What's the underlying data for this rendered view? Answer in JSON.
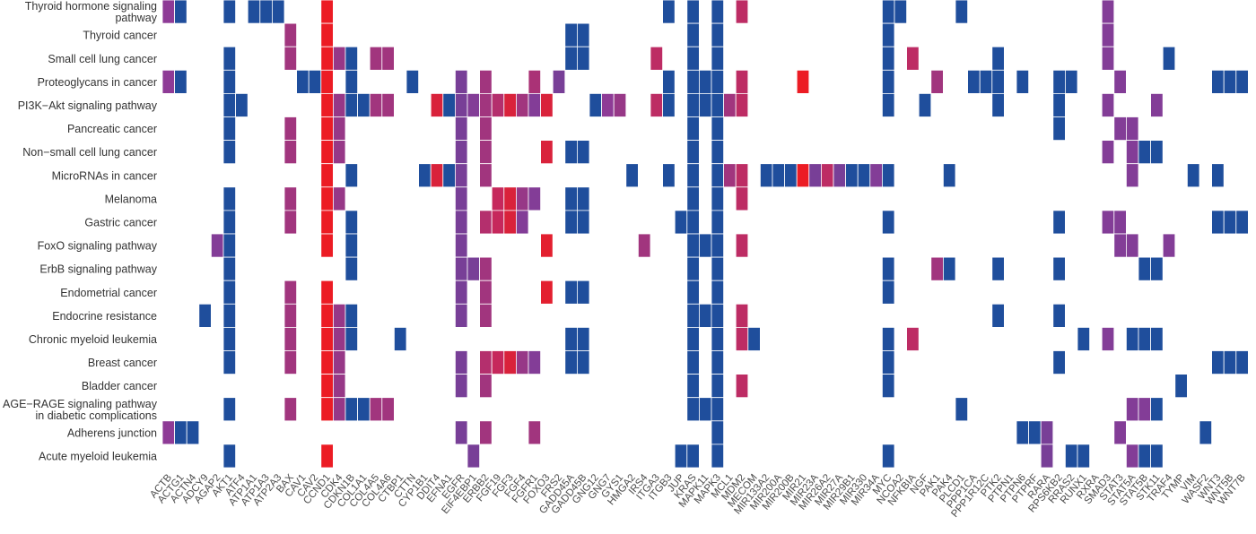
{
  "chart_data": {
    "type": "heatmap",
    "colors": {
      "low": "#1f4e9c",
      "high": "#ec1c24",
      "mid": "#8e3b96"
    },
    "rows": [
      [
        "Thyroid hormone signaling",
        "pathway"
      ],
      [
        "Thyroid cancer"
      ],
      [
        "Small cell lung cancer"
      ],
      [
        "Proteoglycans in cancer"
      ],
      [
        "PI3K−Akt signaling pathway"
      ],
      [
        "Pancreatic cancer"
      ],
      [
        "Non−small cell lung cancer"
      ],
      [
        "MicroRNAs in cancer"
      ],
      [
        "Melanoma"
      ],
      [
        "Gastric cancer"
      ],
      [
        "FoxO signaling pathway"
      ],
      [
        "ErbB signaling pathway"
      ],
      [
        "Endometrial cancer"
      ],
      [
        "Endocrine resistance"
      ],
      [
        "Chronic myeloid leukemia"
      ],
      [
        "Breast cancer"
      ],
      [
        "Bladder cancer"
      ],
      [
        "AGE−RAGE signaling pathway",
        "in diabetic complications"
      ],
      [
        "Adherens junction"
      ],
      [
        "Acute myeloid leukemia"
      ]
    ],
    "columns": [
      "ACTB",
      "ACTG1",
      "ACTN4",
      "ADCY9",
      "AGAP2",
      "AKT1",
      "ATF4",
      "ATP1A1",
      "ATP1A3",
      "ATP2A3",
      "BAX",
      "CAV1",
      "CAV2",
      "CCND1",
      "CDK4",
      "CDKN1B",
      "COL1A1",
      "COL4A5",
      "COL4A6",
      "CTBP1",
      "CTTN",
      "CYP1B1",
      "DDIT4",
      "EFNA1",
      "EGFR",
      "EIF4EBP1",
      "ERBB2",
      "FGF19",
      "FGF3",
      "FGF4",
      "FGFR1",
      "FOXO3",
      "FRS2",
      "GADD45A",
      "GADD45B",
      "GNG12",
      "GNG7",
      "GYS1",
      "HMGA2",
      "IRS4",
      "ITGA3",
      "ITGB3",
      "JUP",
      "KRAS",
      "MAPK11",
      "MAPK3",
      "MCL1",
      "MDM2",
      "MECOM",
      "MIR133A2",
      "MIR200A",
      "MIR200B",
      "MIR21",
      "MIR23A",
      "MIR26A2",
      "MIR27A",
      "MIR29B1",
      "MIR330",
      "MIR34A",
      "MYC",
      "NCOA2",
      "NFKBIA",
      "NGF",
      "PAK1",
      "PAK4",
      "PLCD1",
      "PPP1CA",
      "PPP1R12C",
      "PTK2",
      "PTPN1",
      "PTPN6",
      "PTPRF",
      "RARA",
      "RPS6KB2",
      "RRAS2",
      "RUNX1",
      "RXRA",
      "SMAD3",
      "STAT3",
      "STAT5A",
      "STAT5B",
      "STK11",
      "TRAF4",
      "TYMP",
      "VIM",
      "WASF2",
      "WNT3",
      "WNT5B",
      "WNT7B"
    ],
    "cells": [
      [
        [
          0,
          0.5
        ],
        [
          1,
          0
        ],
        [
          5,
          0
        ],
        [
          7,
          0
        ],
        [
          8,
          0
        ],
        [
          9,
          0
        ],
        [
          13,
          1
        ],
        [
          41,
          0
        ],
        [
          43,
          0
        ],
        [
          45,
          0
        ],
        [
          47,
          0.75
        ],
        [
          59,
          0
        ],
        [
          60,
          0
        ],
        [
          65,
          0
        ],
        [
          77,
          0.45
        ]
      ],
      [
        [
          10,
          0.6
        ],
        [
          13,
          1
        ],
        [
          33,
          0
        ],
        [
          34,
          0
        ],
        [
          43,
          0
        ],
        [
          45,
          0
        ],
        [
          59,
          0
        ],
        [
          77,
          0.45
        ]
      ],
      [
        [
          5,
          0
        ],
        [
          10,
          0.6
        ],
        [
          13,
          1
        ],
        [
          14,
          0.55
        ],
        [
          15,
          0
        ],
        [
          17,
          0.6
        ],
        [
          18,
          0.6
        ],
        [
          33,
          0
        ],
        [
          34,
          0
        ],
        [
          40,
          0.75
        ],
        [
          43,
          0
        ],
        [
          45,
          0
        ],
        [
          59,
          0
        ],
        [
          61,
          0.75
        ],
        [
          68,
          0
        ],
        [
          77,
          0.45
        ],
        [
          82,
          0
        ]
      ],
      [
        [
          0,
          0.5
        ],
        [
          1,
          0
        ],
        [
          5,
          0
        ],
        [
          11,
          0
        ],
        [
          12,
          0
        ],
        [
          13,
          1
        ],
        [
          15,
          0
        ],
        [
          20,
          0
        ],
        [
          24,
          0.4
        ],
        [
          26,
          0.6
        ],
        [
          30,
          0.65
        ],
        [
          32,
          0.4
        ],
        [
          41,
          0
        ],
        [
          43,
          0
        ],
        [
          44,
          0
        ],
        [
          45,
          0
        ],
        [
          47,
          0.75
        ],
        [
          52,
          1
        ],
        [
          59,
          0
        ],
        [
          63,
          0.6
        ],
        [
          66,
          0
        ],
        [
          67,
          0
        ],
        [
          68,
          0
        ],
        [
          70,
          0
        ],
        [
          73,
          0
        ],
        [
          74,
          0
        ],
        [
          78,
          0.45
        ],
        [
          86,
          0
        ],
        [
          87,
          0
        ],
        [
          88,
          0
        ]
      ],
      [
        [
          5,
          0
        ],
        [
          6,
          0
        ],
        [
          13,
          1
        ],
        [
          14,
          0.55
        ],
        [
          15,
          0
        ],
        [
          16,
          0
        ],
        [
          17,
          0.6
        ],
        [
          18,
          0.6
        ],
        [
          22,
          0.9
        ],
        [
          23,
          0
        ],
        [
          24,
          0.4
        ],
        [
          25,
          0.45
        ],
        [
          26,
          0.6
        ],
        [
          27,
          0.7
        ],
        [
          28,
          0.9
        ],
        [
          29,
          0.6
        ],
        [
          30,
          0.45
        ],
        [
          31,
          0.9
        ],
        [
          35,
          0
        ],
        [
          36,
          0.5
        ],
        [
          37,
          0.55
        ],
        [
          40,
          0.75
        ],
        [
          41,
          0
        ],
        [
          43,
          0
        ],
        [
          44,
          0
        ],
        [
          45,
          0
        ],
        [
          46,
          0.6
        ],
        [
          47,
          0.75
        ],
        [
          59,
          0
        ],
        [
          62,
          0
        ],
        [
          68,
          0
        ],
        [
          73,
          0
        ],
        [
          77,
          0.45
        ],
        [
          81,
          0.45
        ]
      ],
      [
        [
          5,
          0
        ],
        [
          10,
          0.6
        ],
        [
          13,
          1
        ],
        [
          14,
          0.55
        ],
        [
          24,
          0.4
        ],
        [
          26,
          0.6
        ],
        [
          43,
          0
        ],
        [
          45,
          0
        ],
        [
          73,
          0
        ],
        [
          78,
          0.45
        ],
        [
          79,
          0.45
        ]
      ],
      [
        [
          5,
          0
        ],
        [
          10,
          0.6
        ],
        [
          13,
          1
        ],
        [
          14,
          0.55
        ],
        [
          24,
          0.4
        ],
        [
          26,
          0.6
        ],
        [
          31,
          0.9
        ],
        [
          33,
          0
        ],
        [
          34,
          0
        ],
        [
          43,
          0
        ],
        [
          45,
          0
        ],
        [
          77,
          0.45
        ],
        [
          79,
          0.45
        ],
        [
          80,
          0
        ],
        [
          81,
          0
        ]
      ],
      [
        [
          13,
          1
        ],
        [
          15,
          0
        ],
        [
          21,
          0
        ],
        [
          22,
          0.9
        ],
        [
          23,
          0
        ],
        [
          24,
          0.4
        ],
        [
          26,
          0.6
        ],
        [
          38,
          0
        ],
        [
          41,
          0
        ],
        [
          43,
          0
        ],
        [
          45,
          0
        ],
        [
          46,
          0.6
        ],
        [
          47,
          0.75
        ],
        [
          49,
          0
        ],
        [
          50,
          0
        ],
        [
          51,
          0
        ],
        [
          52,
          1
        ],
        [
          53,
          0.4
        ],
        [
          54,
          0.75
        ],
        [
          55,
          0.4
        ],
        [
          56,
          0
        ],
        [
          57,
          0
        ],
        [
          58,
          0.45
        ],
        [
          59,
          0
        ],
        [
          64,
          0
        ],
        [
          79,
          0.45
        ],
        [
          84,
          0
        ],
        [
          86,
          0
        ]
      ],
      [
        [
          5,
          0
        ],
        [
          10,
          0.6
        ],
        [
          13,
          1
        ],
        [
          14,
          0.55
        ],
        [
          24,
          0.4
        ],
        [
          27,
          0.8
        ],
        [
          28,
          0.9
        ],
        [
          29,
          0.55
        ],
        [
          30,
          0.45
        ],
        [
          33,
          0
        ],
        [
          34,
          0
        ],
        [
          43,
          0
        ],
        [
          45,
          0
        ],
        [
          47,
          0.75
        ]
      ],
      [
        [
          5,
          0
        ],
        [
          10,
          0.6
        ],
        [
          13,
          1
        ],
        [
          15,
          0
        ],
        [
          24,
          0.4
        ],
        [
          26,
          0.7
        ],
        [
          27,
          0.8
        ],
        [
          28,
          0.9
        ],
        [
          29,
          0.45
        ],
        [
          33,
          0
        ],
        [
          34,
          0
        ],
        [
          42,
          0
        ],
        [
          43,
          0
        ],
        [
          45,
          0
        ],
        [
          59,
          0
        ],
        [
          73,
          0
        ],
        [
          77,
          0.45
        ],
        [
          78,
          0.45
        ],
        [
          86,
          0
        ],
        [
          87,
          0
        ],
        [
          88,
          0
        ]
      ],
      [
        [
          4,
          0.45
        ],
        [
          5,
          0
        ],
        [
          13,
          1
        ],
        [
          15,
          0
        ],
        [
          24,
          0.4
        ],
        [
          31,
          0.95
        ],
        [
          39,
          0.6
        ],
        [
          43,
          0
        ],
        [
          44,
          0
        ],
        [
          45,
          0
        ],
        [
          47,
          0.75
        ],
        [
          78,
          0.45
        ],
        [
          79,
          0.45
        ],
        [
          82,
          0.45
        ]
      ],
      [
        [
          5,
          0
        ],
        [
          15,
          0
        ],
        [
          24,
          0.4
        ],
        [
          25,
          0.4
        ],
        [
          26,
          0.6
        ],
        [
          43,
          0
        ],
        [
          45,
          0
        ],
        [
          59,
          0
        ],
        [
          63,
          0.6
        ],
        [
          64,
          0
        ],
        [
          68,
          0
        ],
        [
          73,
          0
        ],
        [
          80,
          0
        ],
        [
          81,
          0
        ]
      ],
      [
        [
          5,
          0
        ],
        [
          10,
          0.6
        ],
        [
          13,
          1
        ],
        [
          24,
          0.4
        ],
        [
          26,
          0.6
        ],
        [
          31,
          0.95
        ],
        [
          33,
          0
        ],
        [
          34,
          0
        ],
        [
          43,
          0
        ],
        [
          45,
          0
        ],
        [
          59,
          0
        ]
      ],
      [
        [
          3,
          0
        ],
        [
          5,
          0
        ],
        [
          10,
          0.6
        ],
        [
          13,
          1
        ],
        [
          14,
          0.55
        ],
        [
          15,
          0
        ],
        [
          24,
          0.4
        ],
        [
          26,
          0.6
        ],
        [
          43,
          0
        ],
        [
          44,
          0
        ],
        [
          45,
          0
        ],
        [
          47,
          0.75
        ],
        [
          68,
          0
        ],
        [
          73,
          0
        ]
      ],
      [
        [
          5,
          0
        ],
        [
          10,
          0.6
        ],
        [
          13,
          1
        ],
        [
          14,
          0.55
        ],
        [
          15,
          0
        ],
        [
          19,
          0
        ],
        [
          33,
          0
        ],
        [
          34,
          0
        ],
        [
          43,
          0
        ],
        [
          45,
          0
        ],
        [
          47,
          0.75
        ],
        [
          48,
          0
        ],
        [
          59,
          0
        ],
        [
          61,
          0.75
        ],
        [
          75,
          0
        ],
        [
          77,
          0.45
        ],
        [
          79,
          0
        ],
        [
          80,
          0
        ],
        [
          81,
          0
        ]
      ],
      [
        [
          5,
          0
        ],
        [
          10,
          0.6
        ],
        [
          13,
          1
        ],
        [
          14,
          0.55
        ],
        [
          24,
          0.4
        ],
        [
          26,
          0.7
        ],
        [
          27,
          0.8
        ],
        [
          28,
          0.9
        ],
        [
          29,
          0.55
        ],
        [
          30,
          0.45
        ],
        [
          33,
          0
        ],
        [
          34,
          0
        ],
        [
          43,
          0
        ],
        [
          45,
          0
        ],
        [
          59,
          0
        ],
        [
          73,
          0
        ],
        [
          86,
          0
        ],
        [
          87,
          0
        ],
        [
          88,
          0
        ]
      ],
      [
        [
          13,
          1
        ],
        [
          14,
          0.55
        ],
        [
          24,
          0.4
        ],
        [
          26,
          0.6
        ],
        [
          43,
          0
        ],
        [
          45,
          0
        ],
        [
          47,
          0.75
        ],
        [
          59,
          0
        ],
        [
          83,
          0
        ]
      ],
      [
        [
          5,
          0
        ],
        [
          10,
          0.6
        ],
        [
          13,
          1
        ],
        [
          14,
          0.55
        ],
        [
          15,
          0
        ],
        [
          16,
          0
        ],
        [
          17,
          0.6
        ],
        [
          18,
          0.6
        ],
        [
          43,
          0
        ],
        [
          44,
          0
        ],
        [
          45,
          0
        ],
        [
          65,
          0
        ],
        [
          79,
          0.45
        ],
        [
          80,
          0.45
        ],
        [
          81,
          0
        ]
      ],
      [
        [
          0,
          0.5
        ],
        [
          1,
          0
        ],
        [
          2,
          0
        ],
        [
          24,
          0.4
        ],
        [
          26,
          0.6
        ],
        [
          30,
          0.6
        ],
        [
          45,
          0
        ],
        [
          70,
          0
        ],
        [
          71,
          0
        ],
        [
          72,
          0.4
        ],
        [
          78,
          0.45
        ],
        [
          85,
          0
        ]
      ],
      [
        [
          5,
          0
        ],
        [
          13,
          1
        ],
        [
          25,
          0.4
        ],
        [
          42,
          0
        ],
        [
          43,
          0
        ],
        [
          45,
          0
        ],
        [
          59,
          0
        ],
        [
          72,
          0.4
        ],
        [
          74,
          0
        ],
        [
          75,
          0
        ],
        [
          79,
          0.45
        ],
        [
          80,
          0
        ],
        [
          81,
          0
        ]
      ]
    ]
  }
}
